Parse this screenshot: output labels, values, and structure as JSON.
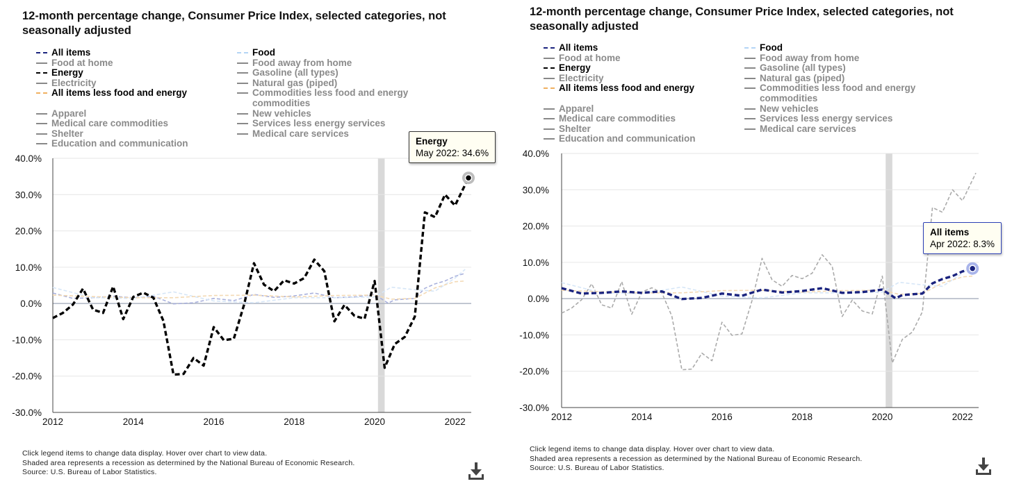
{
  "panels": [
    {
      "title_line1": "12-month percentage change, Consumer Price Index, selected categories, not",
      "title_line2": "seasonally adjusted",
      "legend": [
        {
          "label": "All items",
          "on": true,
          "color": "#1a237e"
        },
        {
          "label": "Food",
          "on": true,
          "color": "#b3d4f5"
        },
        {
          "label": "Food at home",
          "on": false,
          "color": "#888888"
        },
        {
          "label": "Food away from home",
          "on": false,
          "color": "#888888"
        },
        {
          "label": "Energy",
          "on": true,
          "color": "#000000"
        },
        {
          "label": "Gasoline (all types)",
          "on": false,
          "color": "#888888"
        },
        {
          "label": "Electricity",
          "on": false,
          "color": "#888888"
        },
        {
          "label": "Natural gas (piped)",
          "on": false,
          "color": "#888888"
        },
        {
          "label": "All items less food and energy",
          "on": true,
          "color": "#f0b060"
        },
        {
          "label": "Commodities less food and energy commodities",
          "on": false,
          "color": "#888888"
        },
        {
          "label": "Apparel",
          "on": false,
          "color": "#888888"
        },
        {
          "label": "New vehicles",
          "on": false,
          "color": "#888888"
        },
        {
          "label": "Medical care commodities",
          "on": false,
          "color": "#888888"
        },
        {
          "label": "Services less energy services",
          "on": false,
          "color": "#888888"
        },
        {
          "label": "Shelter",
          "on": false,
          "color": "#888888"
        },
        {
          "label": "Medical care services",
          "on": false,
          "color": "#888888"
        },
        {
          "label": "Education and communication",
          "on": false,
          "color": "#888888"
        }
      ],
      "tooltip": {
        "series": "Energy",
        "text": "May 2022: 34.6%"
      },
      "focus": "Energy",
      "footnote_lines": [
        "Click legend items to change data display. Hover over chart to view data.",
        "Shaded area represents a recession as determined by the National Bureau of Economic Research.",
        "Source: U.S. Bureau of Labor Statistics."
      ]
    },
    {
      "title_line1": "12-month percentage change, Consumer Price Index, selected categories, not",
      "title_line2": "seasonally adjusted",
      "legend": [
        {
          "label": "All items",
          "on": true,
          "color": "#1a237e"
        },
        {
          "label": "Food",
          "on": true,
          "color": "#b3d4f5"
        },
        {
          "label": "Food at home",
          "on": false,
          "color": "#888888"
        },
        {
          "label": "Food away from home",
          "on": false,
          "color": "#888888"
        },
        {
          "label": "Energy",
          "on": true,
          "color": "#000000"
        },
        {
          "label": "Gasoline (all types)",
          "on": false,
          "color": "#888888"
        },
        {
          "label": "Electricity",
          "on": false,
          "color": "#888888"
        },
        {
          "label": "Natural gas (piped)",
          "on": false,
          "color": "#888888"
        },
        {
          "label": "All items less food and energy",
          "on": true,
          "color": "#f0b060"
        },
        {
          "label": "Commodities less food and energy commodities",
          "on": false,
          "color": "#888888"
        },
        {
          "label": "Apparel",
          "on": false,
          "color": "#888888"
        },
        {
          "label": "New vehicles",
          "on": false,
          "color": "#888888"
        },
        {
          "label": "Medical care commodities",
          "on": false,
          "color": "#888888"
        },
        {
          "label": "Services less energy services",
          "on": false,
          "color": "#888888"
        },
        {
          "label": "Shelter",
          "on": false,
          "color": "#888888"
        },
        {
          "label": "Medical care services",
          "on": false,
          "color": "#888888"
        },
        {
          "label": "Education and communication",
          "on": false,
          "color": "#888888"
        }
      ],
      "tooltip": {
        "series": "All items",
        "text": "Apr 2022: 8.3%"
      },
      "focus": "All items",
      "footnote_lines": [
        "Click legend items to change data display. Hover over chart to view data.",
        "Shaded area represents a recession as determined by the National Bureau of Economic Research.",
        "Source: U.S. Bureau of Labor Statistics."
      ]
    }
  ],
  "chart_data": [
    {
      "type": "line",
      "title": "12-month percentage change, Consumer Price Index, selected categories, not seasonally adjusted",
      "x_ticks": [
        "2012",
        "2014",
        "2016",
        "2018",
        "2020",
        "2022"
      ],
      "y_ticks": [
        "40.0%",
        "30.0%",
        "20.0%",
        "10.0%",
        "0.0%",
        "-10.0%",
        "-20.0%",
        "-30.0%"
      ],
      "ylim": [
        -30,
        40
      ],
      "xlim": [
        "2012-01",
        "2022-05"
      ],
      "recession": [
        "2020-02",
        "2020-04"
      ],
      "grid": "horizontal",
      "series": [
        {
          "name": "Energy",
          "x": [
            "2012-01",
            "2012-04",
            "2012-07",
            "2012-10",
            "2013-01",
            "2013-04",
            "2013-07",
            "2013-10",
            "2014-01",
            "2014-04",
            "2014-07",
            "2014-10",
            "2015-01",
            "2015-04",
            "2015-07",
            "2015-10",
            "2016-01",
            "2016-04",
            "2016-07",
            "2016-10",
            "2017-01",
            "2017-04",
            "2017-07",
            "2017-10",
            "2018-01",
            "2018-04",
            "2018-07",
            "2018-10",
            "2019-01",
            "2019-04",
            "2019-07",
            "2019-10",
            "2020-01",
            "2020-04",
            "2020-07",
            "2020-10",
            "2021-01",
            "2021-04",
            "2021-07",
            "2021-10",
            "2022-01",
            "2022-05"
          ],
          "values": [
            -4.0,
            -2.6,
            -0.3,
            4.1,
            -1.7,
            -2.6,
            4.7,
            -4.3,
            1.8,
            3.0,
            1.6,
            -4.8,
            -19.6,
            -19.4,
            -15.0,
            -17.1,
            -6.5,
            -10.1,
            -9.7,
            -0.5,
            11.1,
            5.2,
            3.4,
            6.4,
            5.5,
            7.0,
            12.1,
            8.9,
            -4.9,
            -0.4,
            -3.4,
            -4.2,
            6.2,
            -17.7,
            -11.2,
            -9.2,
            -3.6,
            25.1,
            23.8,
            30.0,
            27.0,
            34.6
          ]
        },
        {
          "name": "All items",
          "x": [
            "2012-01",
            "2012-07",
            "2013-01",
            "2013-07",
            "2014-01",
            "2014-07",
            "2015-01",
            "2015-07",
            "2016-01",
            "2016-07",
            "2017-01",
            "2017-07",
            "2018-01",
            "2018-07",
            "2019-01",
            "2019-07",
            "2020-01",
            "2020-05",
            "2020-07",
            "2021-01",
            "2021-04",
            "2021-07",
            "2021-10",
            "2022-01",
            "2022-04"
          ],
          "values": [
            2.9,
            1.4,
            1.6,
            2.0,
            1.6,
            2.0,
            -0.1,
            0.2,
            1.4,
            0.8,
            2.5,
            1.7,
            2.1,
            2.9,
            1.6,
            1.8,
            2.5,
            0.1,
            1.0,
            1.4,
            4.2,
            5.4,
            6.2,
            7.5,
            8.3
          ]
        },
        {
          "name": "Food",
          "x": [
            "2012-01",
            "2013-01",
            "2014-01",
            "2015-01",
            "2016-01",
            "2017-01",
            "2018-01",
            "2019-01",
            "2020-01",
            "2020-06",
            "2021-01",
            "2021-07",
            "2022-01",
            "2022-04"
          ],
          "values": [
            4.4,
            1.6,
            1.4,
            3.2,
            0.7,
            0.2,
            1.6,
            1.6,
            1.8,
            4.5,
            3.8,
            3.4,
            7.0,
            9.4
          ]
        },
        {
          "name": "All items less food and energy",
          "x": [
            "2012-01",
            "2013-01",
            "2014-01",
            "2015-01",
            "2016-01",
            "2017-01",
            "2018-01",
            "2019-01",
            "2020-01",
            "2020-06",
            "2021-01",
            "2021-07",
            "2022-01",
            "2022-04"
          ],
          "values": [
            2.3,
            1.9,
            1.6,
            1.6,
            2.2,
            2.3,
            1.8,
            2.2,
            2.3,
            1.2,
            1.4,
            4.3,
            6.0,
            6.2
          ]
        }
      ]
    },
    {
      "type": "line",
      "title": "12-month percentage change, Consumer Price Index, selected categories, not seasonally adjusted",
      "x_ticks": [
        "2012",
        "2014",
        "2016",
        "2018",
        "2020",
        "2022"
      ],
      "y_ticks": [
        "40.0%",
        "30.0%",
        "20.0%",
        "10.0%",
        "0.0%",
        "-10.0%",
        "-20.0%",
        "-30.0%"
      ],
      "ylim": [
        -30,
        40
      ],
      "xlim": [
        "2012-01",
        "2022-05"
      ],
      "recession": [
        "2020-02",
        "2020-04"
      ],
      "grid": "horizontal",
      "series": [
        {
          "name": "All items",
          "x": [
            "2012-01",
            "2012-07",
            "2013-01",
            "2013-07",
            "2014-01",
            "2014-07",
            "2015-01",
            "2015-07",
            "2016-01",
            "2016-07",
            "2017-01",
            "2017-07",
            "2018-01",
            "2018-07",
            "2019-01",
            "2019-07",
            "2020-01",
            "2020-05",
            "2020-07",
            "2021-01",
            "2021-04",
            "2021-07",
            "2021-10",
            "2022-01",
            "2022-04"
          ],
          "values": [
            2.9,
            1.4,
            1.6,
            2.0,
            1.6,
            2.0,
            -0.1,
            0.2,
            1.4,
            0.8,
            2.5,
            1.7,
            2.1,
            2.9,
            1.6,
            1.8,
            2.5,
            0.1,
            1.0,
            1.4,
            4.2,
            5.4,
            6.2,
            7.5,
            8.3
          ]
        },
        {
          "name": "Energy",
          "x": [
            "2012-01",
            "2012-04",
            "2012-07",
            "2012-10",
            "2013-01",
            "2013-04",
            "2013-07",
            "2013-10",
            "2014-01",
            "2014-04",
            "2014-07",
            "2014-10",
            "2015-01",
            "2015-04",
            "2015-07",
            "2015-10",
            "2016-01",
            "2016-04",
            "2016-07",
            "2016-10",
            "2017-01",
            "2017-04",
            "2017-07",
            "2017-10",
            "2018-01",
            "2018-04",
            "2018-07",
            "2018-10",
            "2019-01",
            "2019-04",
            "2019-07",
            "2019-10",
            "2020-01",
            "2020-04",
            "2020-07",
            "2020-10",
            "2021-01",
            "2021-04",
            "2021-07",
            "2021-10",
            "2022-01",
            "2022-05"
          ],
          "values": [
            -4.0,
            -2.6,
            -0.3,
            4.1,
            -1.7,
            -2.6,
            4.7,
            -4.3,
            1.8,
            3.0,
            1.6,
            -4.8,
            -19.6,
            -19.4,
            -15.0,
            -17.1,
            -6.5,
            -10.1,
            -9.7,
            -0.5,
            11.1,
            5.2,
            3.4,
            6.4,
            5.5,
            7.0,
            12.1,
            8.9,
            -4.9,
            -0.4,
            -3.4,
            -4.2,
            6.2,
            -17.7,
            -11.2,
            -9.2,
            -3.6,
            25.1,
            23.8,
            30.0,
            27.0,
            34.6
          ]
        },
        {
          "name": "Food",
          "x": [
            "2012-01",
            "2013-01",
            "2014-01",
            "2015-01",
            "2016-01",
            "2017-01",
            "2018-01",
            "2019-01",
            "2020-01",
            "2020-06",
            "2021-01",
            "2021-07",
            "2022-01",
            "2022-04"
          ],
          "values": [
            4.4,
            1.6,
            1.4,
            3.2,
            0.7,
            0.2,
            1.6,
            1.6,
            1.8,
            4.5,
            3.8,
            3.4,
            7.0,
            9.4
          ]
        },
        {
          "name": "All items less food and energy",
          "x": [
            "2012-01",
            "2013-01",
            "2014-01",
            "2015-01",
            "2016-01",
            "2017-01",
            "2018-01",
            "2019-01",
            "2020-01",
            "2020-06",
            "2021-01",
            "2021-07",
            "2022-01",
            "2022-04"
          ],
          "values": [
            2.3,
            1.9,
            1.6,
            1.6,
            2.2,
            2.3,
            1.8,
            2.2,
            2.3,
            1.2,
            1.4,
            4.3,
            6.0,
            6.2
          ]
        }
      ]
    }
  ]
}
